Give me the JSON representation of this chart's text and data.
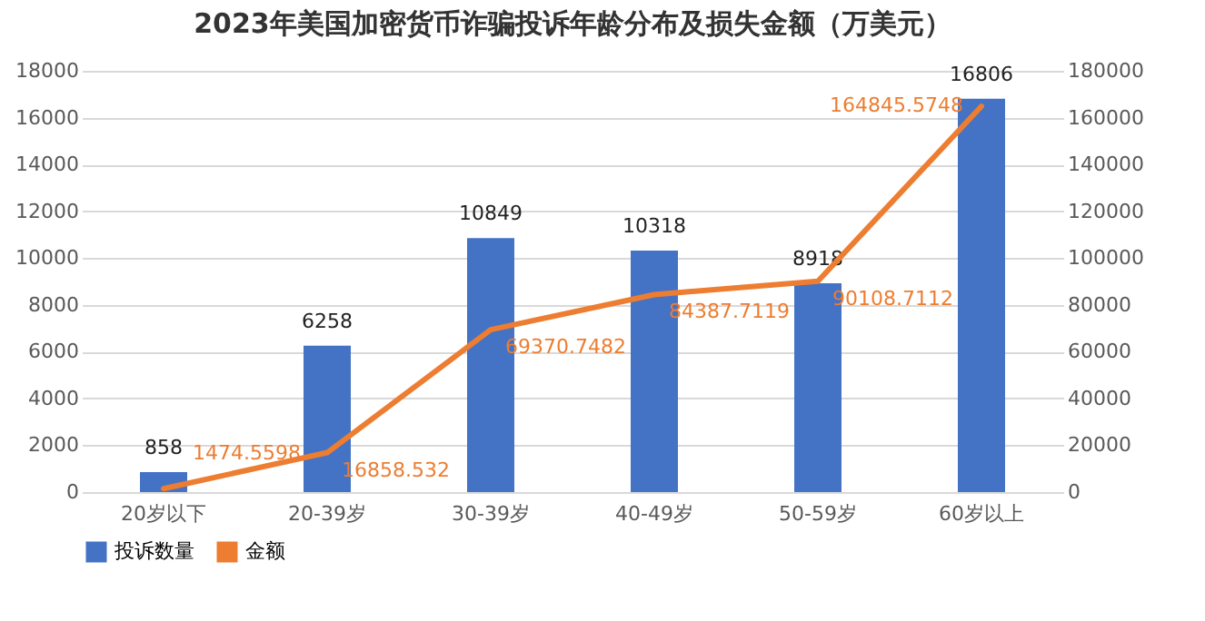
{
  "chart_data": {
    "type": "bar",
    "title": "2023年美国加密货币诈骗投诉年龄分布及损失金额（万美元）",
    "categories": [
      "20岁以下",
      "20-39岁",
      "30-39岁",
      "40-49岁",
      "50-59岁",
      "60岁以上"
    ],
    "series": [
      {
        "name": "投诉数量",
        "color": "#4472c4",
        "values": [
          858,
          6258,
          10849,
          10318,
          8918,
          16806
        ]
      },
      {
        "name": "金额",
        "type": "line",
        "axis": "y2",
        "color": "#ed7d31",
        "values": [
          1474.5598,
          16858.532,
          69370.7482,
          84387.7119,
          90108.7112,
          164845.5748
        ]
      }
    ],
    "ylim": [
      0,
      18000
    ],
    "yticks": [
      0,
      2000,
      4000,
      6000,
      8000,
      10000,
      12000,
      14000,
      16000,
      18000
    ],
    "y2lim": [
      0,
      180000
    ],
    "y2ticks": [
      0,
      20000,
      40000,
      60000,
      80000,
      100000,
      120000,
      140000,
      160000,
      180000
    ],
    "grid": "y",
    "legend": "bottom",
    "data_labels": true
  }
}
